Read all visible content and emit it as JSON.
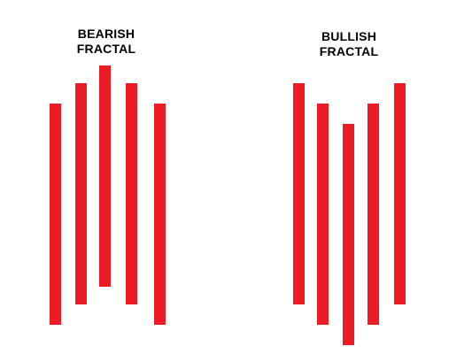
{
  "bearish": {
    "label_line1": "BEARISH",
    "label_line2": "FRACTAL"
  },
  "bullish": {
    "label_line1": "BULLISH",
    "label_line2": "FRACTAL"
  },
  "colors": {
    "bar": "#ed1c24",
    "text": "#000000",
    "background": "#ffffff"
  }
}
